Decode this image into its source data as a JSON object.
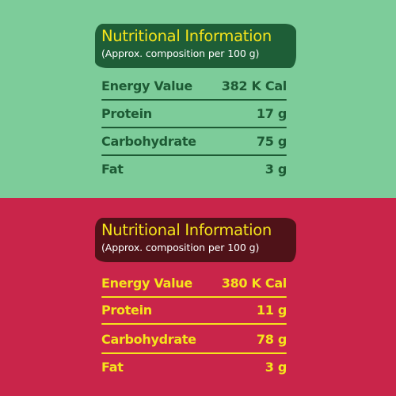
{
  "panels": [
    {
      "title": "Nutritional Information",
      "subtitle": "(Approx. composition per 100 g)",
      "colors": {
        "background": "#7dcc9a",
        "header_bg": "#1e5e37",
        "title": "#f5e41c",
        "subtitle": "#ffffff",
        "text": "#1d5a34",
        "divider": "#1d5a34"
      },
      "rows": [
        {
          "label": "Energy Value",
          "value": "382 K Cal"
        },
        {
          "label": "Protein",
          "value": "17 g"
        },
        {
          "label": "Carbohydrate",
          "value": "75 g"
        },
        {
          "label": "Fat",
          "value": "3 g"
        }
      ]
    },
    {
      "title": "Nutritional Information",
      "subtitle": "(Approx. composition per 100 g)",
      "colors": {
        "background": "#c9254a",
        "header_bg": "#4f1218",
        "title": "#f5e41c",
        "subtitle": "#ffffff",
        "text": "#f5e41c",
        "divider": "#f5e41c"
      },
      "rows": [
        {
          "label": "Energy Value",
          "value": "380 K Cal"
        },
        {
          "label": "Protein",
          "value": "11 g"
        },
        {
          "label": "Carbohydrate",
          "value": "78 g"
        },
        {
          "label": "Fat",
          "value": "3 g"
        }
      ]
    }
  ]
}
